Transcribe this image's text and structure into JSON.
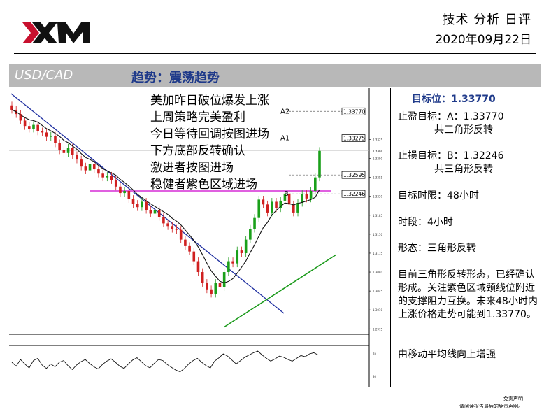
{
  "header": {
    "brand": "XM",
    "report_type": "技术 分析 日评",
    "date": "2020年09月22日"
  },
  "banner": {
    "pair": "USD/CAD",
    "trend": "趋势：震荡趋势"
  },
  "notes": [
    "美加昨日破位爆发上涨",
    "上周策略完美盈利",
    "今日等待回调按图进场",
    "下方底部反转确认",
    "激进者按图进场",
    "稳健者紫色区域进场"
  ],
  "side": {
    "target_label": "目标位：",
    "target_value": "1.33770",
    "tp_label": "止盈目标：A：1.33770",
    "tp_pattern": "共三角形反转",
    "sl_label": "止损目标：B：1.32246",
    "sl_pattern": "共三角形反转",
    "timeframe": "目标时限：48小时",
    "period": "时段：4小时",
    "shape": "形态：三角形反转",
    "analysis": "目前三角形反转形态，已经确认形成。关注紫色区域颈线位附近的支撑阻力互换。未来48小时内上涨价格走势可能到1.33770。",
    "ma_note": "由移动平均线向上增强"
  },
  "disclaimer": {
    "line1": "免责声明",
    "line2": "请阅读报告最后的免责声明。"
  },
  "chart_data": {
    "type": "candlestick",
    "instrument": "USD/CAD",
    "timeframe": "4H",
    "levels": [
      {
        "name": "A2",
        "value": 1.3377
      },
      {
        "name": "A1",
        "value": 1.33275
      },
      {
        "name": "",
        "value": 1.32595
      },
      {
        "name": "B",
        "value": 1.32246
      }
    ],
    "y_ticks": [
      1.3325,
      1.329,
      1.3255,
      1.322,
      1.3185,
      1.315,
      1.3115,
      1.308,
      1.3045,
      1.301,
      1.2975
    ],
    "y_range": [
      1.2965,
      1.342
    ],
    "current_price": 1.3304,
    "close_series": [
      1.338,
      1.3372,
      1.336,
      1.335,
      1.3345,
      1.3352,
      1.334,
      1.3338,
      1.333,
      1.3332,
      1.3318,
      1.3305,
      1.33,
      1.331,
      1.3296,
      1.3288,
      1.3275,
      1.3268,
      1.328,
      1.327,
      1.3262,
      1.3255,
      1.3258,
      1.325,
      1.3238,
      1.3226,
      1.323,
      1.3215,
      1.3206,
      1.32,
      1.321,
      1.3195,
      1.3188,
      1.3195,
      1.3182,
      1.317,
      1.3165,
      1.316,
      1.3158,
      1.314,
      1.3128,
      1.3118,
      1.31,
      1.308,
      1.306,
      1.3048,
      1.304,
      1.306,
      1.3052,
      1.308,
      1.31,
      1.3096,
      1.312,
      1.3115,
      1.314,
      1.316,
      1.318,
      1.3214,
      1.3205,
      1.319,
      1.321,
      1.3198,
      1.3212,
      1.3225,
      1.3205,
      1.319,
      1.3208,
      1.3224,
      1.3216,
      1.323,
      1.3255,
      1.3304
    ],
    "oscillator": [
      55,
      48,
      60,
      52,
      45,
      58,
      62,
      50,
      44,
      52,
      47,
      55,
      58,
      49,
      42,
      50,
      56,
      60,
      53,
      47,
      43,
      51,
      57,
      61,
      55,
      48,
      44,
      52,
      59,
      63,
      56,
      49,
      45,
      53,
      60,
      58,
      51,
      46,
      41,
      38,
      44,
      52,
      58,
      62,
      55,
      49,
      45,
      57,
      63,
      70,
      66,
      59,
      52,
      58,
      64,
      68,
      72,
      75,
      68,
      62,
      57,
      61,
      66,
      64,
      60,
      57,
      62,
      67,
      65,
      70,
      72,
      68
    ]
  }
}
